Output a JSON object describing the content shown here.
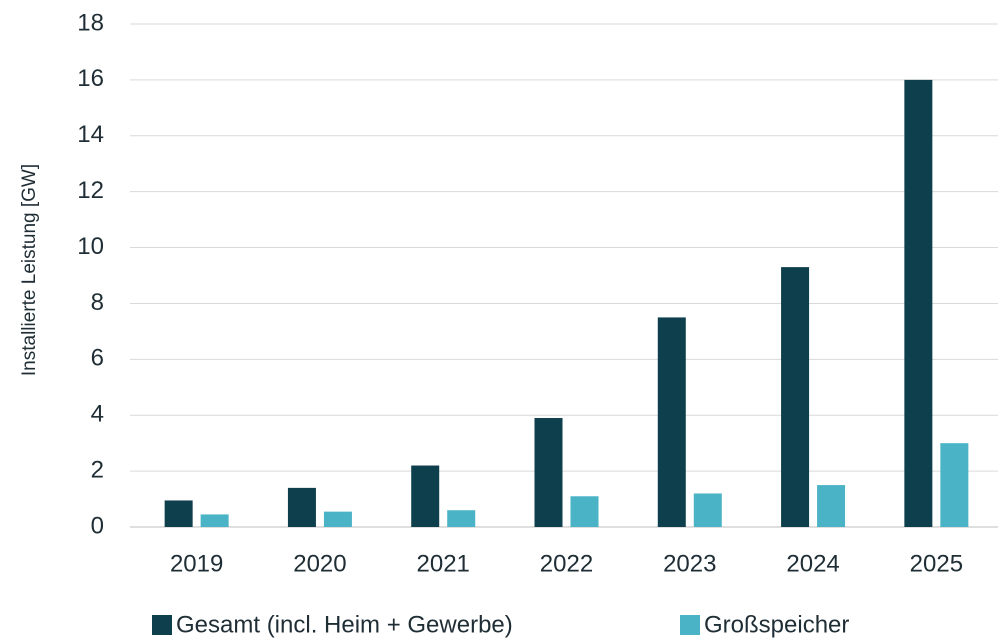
{
  "chart_data": {
    "type": "bar",
    "y_axis_label": "Installierte Leistung [GW]",
    "categories": [
      "2019",
      "2020",
      "2021",
      "2022",
      "2023",
      "2024",
      "2025"
    ],
    "series": [
      {
        "name": "Gesamt (incl. Heim + Gewerbe)",
        "color": "#0e3f4c",
        "values": [
          0.95,
          1.4,
          2.2,
          3.9,
          7.5,
          9.3,
          16
        ]
      },
      {
        "name": "Großspeicher",
        "color": "#4bb3c6",
        "values": [
          0.45,
          0.55,
          0.6,
          1.1,
          1.2,
          1.5,
          3
        ]
      }
    ],
    "ylim": [
      0,
      18
    ],
    "yticks": [
      0,
      2,
      4,
      6,
      8,
      10,
      12,
      14,
      16,
      18
    ],
    "grid": true,
    "legend": "bottom"
  }
}
